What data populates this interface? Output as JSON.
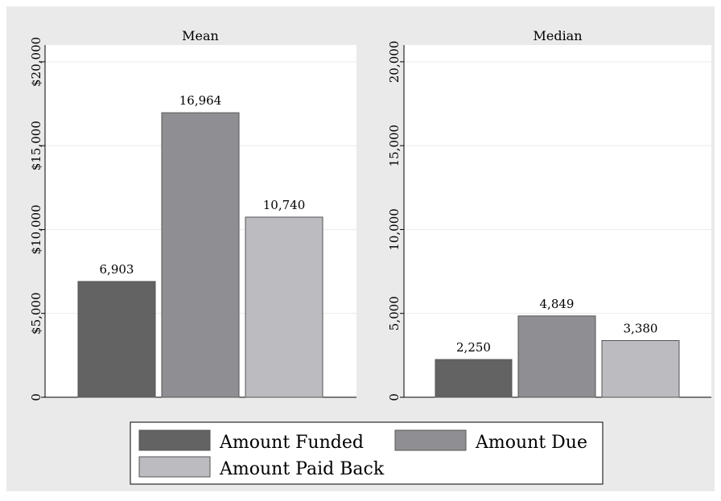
{
  "chart_data": [
    {
      "type": "bar",
      "title": "Mean",
      "categories": [
        "Amount Funded",
        "Amount Due",
        "Amount Paid Back"
      ],
      "values": [
        6903,
        16964,
        10740
      ],
      "value_labels": [
        "6,903",
        "16,964",
        "10,740"
      ],
      "ylim": [
        0,
        21000
      ],
      "yticks": [
        0,
        5000,
        10000,
        15000,
        20000
      ],
      "ytick_labels": [
        "0",
        "$5,000",
        "$10,000",
        "$15,000",
        "$20,000"
      ],
      "xlabel": "",
      "ylabel": "",
      "grid": true
    },
    {
      "type": "bar",
      "title": "Median",
      "categories": [
        "Amount Funded",
        "Amount Due",
        "Amount Paid Back"
      ],
      "values": [
        2250,
        4849,
        3380
      ],
      "value_labels": [
        "2,250",
        "4,849",
        "3,380"
      ],
      "ylim": [
        0,
        21000
      ],
      "yticks": [
        0,
        5000,
        10000,
        15000,
        20000
      ],
      "ytick_labels": [
        "0",
        "5,000",
        "10,000",
        "15,000",
        "20,000"
      ],
      "xlabel": "",
      "ylabel": "",
      "grid": true
    }
  ],
  "legend": {
    "placement": "bottom",
    "items": [
      {
        "label": "Amount Funded",
        "color": "#636363"
      },
      {
        "label": "Amount Due",
        "color": "#8f8f93"
      },
      {
        "label": "Amount Paid Back",
        "color": "#bcbcc0"
      }
    ]
  },
  "colors": {
    "background": "#eaeaea",
    "plot_background": "#ffffff",
    "gridline": "#eaeaea",
    "bar_outline": "#555555"
  }
}
